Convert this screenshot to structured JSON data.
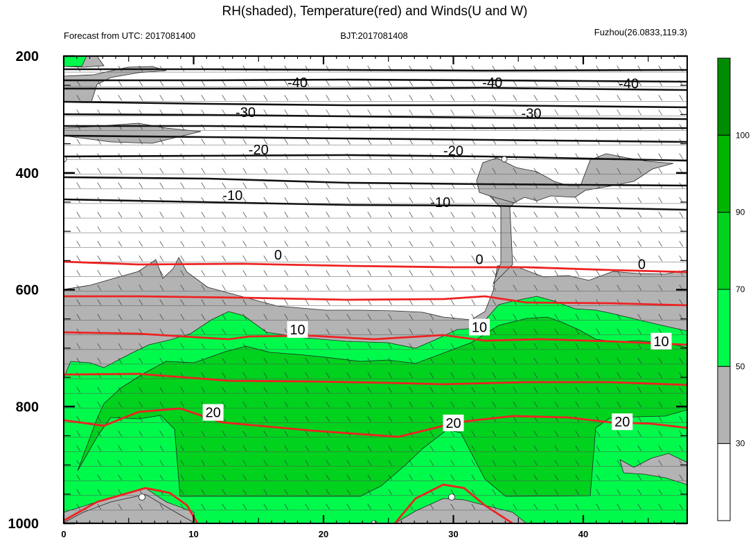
{
  "chart_data": {
    "type": "heatmap",
    "title": "RH(shaded), Temperature(red) and Winds(U and W)",
    "left_label": "Forecast from UTC: 2017081400",
    "center_label": "BJT:2017081408",
    "right_label": "Fuzhou(26.0833,119.3)",
    "xlabel": "",
    "ylabel": "",
    "xlim": [
      0,
      48
    ],
    "ylim": [
      1000,
      200
    ],
    "x_ticks": [
      0,
      10,
      20,
      30,
      40
    ],
    "y_ticks": [
      200,
      400,
      600,
      800,
      1000
    ],
    "colorbar_levels": [
      30,
      50,
      70,
      90,
      100
    ],
    "colorbar_colors": [
      "#ffffff",
      "#b3b3b3",
      "#00fa4b",
      "#00d21e",
      "#00b400",
      "#008c00"
    ],
    "isotherm_labels": [
      {
        "text": "-40",
        "x": 18.0,
        "p": 245
      },
      {
        "text": "-40",
        "x": 33.0,
        "p": 245
      },
      {
        "text": "-40",
        "x": 43.5,
        "p": 247
      },
      {
        "text": "-30",
        "x": 14.0,
        "p": 296
      },
      {
        "text": "-30",
        "x": 36.0,
        "p": 298
      },
      {
        "text": "-20",
        "x": 15.0,
        "p": 360
      },
      {
        "text": "-20",
        "x": 30.0,
        "p": 362
      },
      {
        "text": "-10",
        "x": 13.0,
        "p": 438
      },
      {
        "text": "-10",
        "x": 29.0,
        "p": 450
      },
      {
        "text": "0",
        "x": 16.5,
        "p": 540
      },
      {
        "text": "0",
        "x": 32.0,
        "p": 548
      },
      {
        "text": "0",
        "x": 44.5,
        "p": 556
      },
      {
        "text": "10",
        "x": 18.0,
        "p": 668
      },
      {
        "text": "10",
        "x": 32.0,
        "p": 664
      },
      {
        "text": "10",
        "x": 46.0,
        "p": 688
      },
      {
        "text": "20",
        "x": 11.5,
        "p": 810
      },
      {
        "text": "20",
        "x": 30.0,
        "p": 828
      },
      {
        "text": "20",
        "x": 43.0,
        "p": 826
      }
    ]
  }
}
